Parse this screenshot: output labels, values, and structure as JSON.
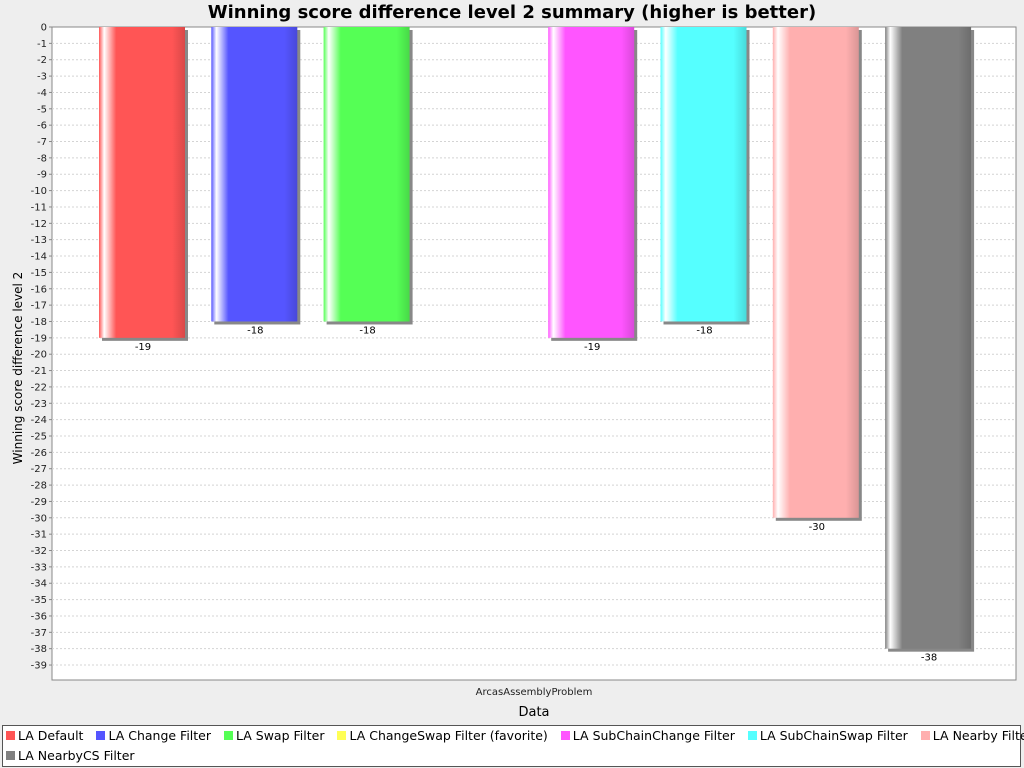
{
  "chart_data": {
    "type": "bar",
    "title": "Winning score difference level 2 summary (higher is better)",
    "xlabel": "Data",
    "ylabel": "Winning score difference level 2",
    "categories": [
      "ArcasAssemblyProblem"
    ],
    "ylim": [
      -40,
      0
    ],
    "yticks": [
      0,
      -1,
      -2,
      -3,
      -4,
      -5,
      -6,
      -7,
      -8,
      -9,
      -10,
      -11,
      -12,
      -13,
      -14,
      -15,
      -16,
      -17,
      -18,
      -19,
      -20,
      -21,
      -22,
      -23,
      -24,
      -25,
      -26,
      -27,
      -28,
      -29,
      -30,
      -31,
      -32,
      -33,
      -34,
      -35,
      -36,
      -37,
      -38,
      -39
    ],
    "grid": true,
    "legend_position": "bottom",
    "series": [
      {
        "name": "LA Default",
        "values": [
          -19
        ],
        "color": "#ff5555"
      },
      {
        "name": "LA Change Filter",
        "values": [
          -18
        ],
        "color": "#5555ff"
      },
      {
        "name": "LA Swap Filter",
        "values": [
          -18
        ],
        "color": "#55ff55"
      },
      {
        "name": "LA ChangeSwap Filter (favorite)",
        "values": [
          null
        ],
        "color": "#ffff55"
      },
      {
        "name": "LA SubChainChange Filter",
        "values": [
          -19
        ],
        "color": "#ff55ff"
      },
      {
        "name": "LA SubChainSwap Filter",
        "values": [
          -18
        ],
        "color": "#55ffff"
      },
      {
        "name": "LA Nearby Filter",
        "values": [
          -30
        ],
        "color": "#ffafaf"
      },
      {
        "name": "LA NearbyCS Filter",
        "values": [
          -38
        ],
        "color": "#808080"
      }
    ],
    "data_labels": [
      "-19",
      "-18",
      "-18",
      "",
      "-19",
      "-18",
      "-30",
      "-38"
    ]
  }
}
